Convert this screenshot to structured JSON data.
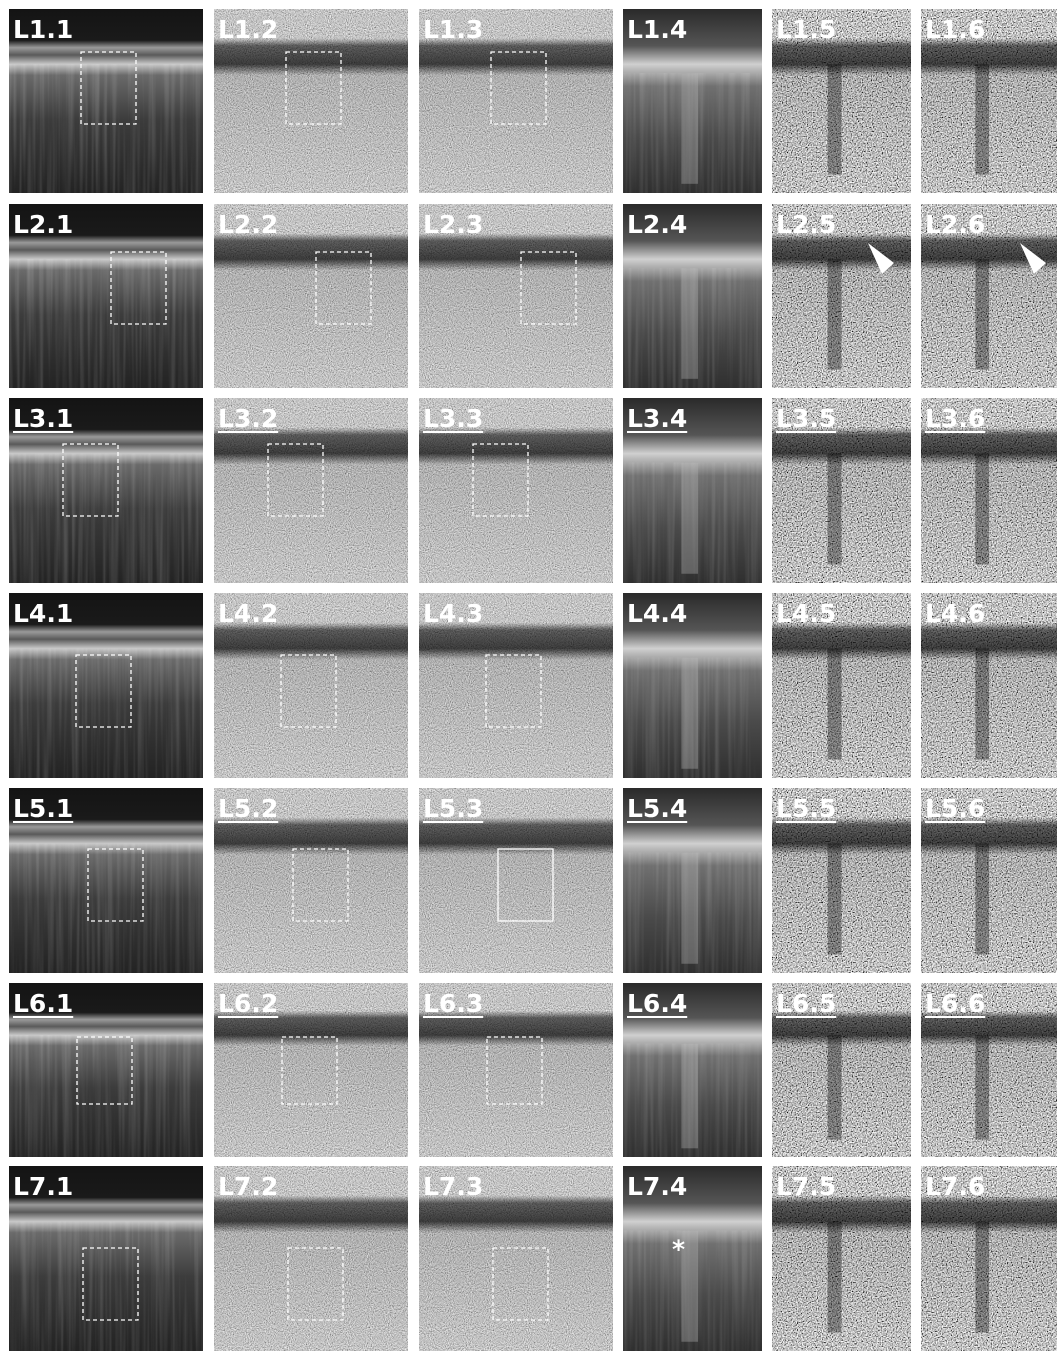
{
  "rows": [
    {
      "underlined": false,
      "labels": [
        "L1.1",
        "L1.2",
        "L1.3",
        "L1.4",
        "L1.5",
        "L1.6"
      ]
    },
    {
      "underlined": false,
      "labels": [
        "L2.1",
        "L2.2",
        "L2.3",
        "L2.4",
        "L2.5",
        "L2.6"
      ]
    },
    {
      "underlined": true,
      "labels": [
        "L3.1",
        "L3.2",
        "L3.3",
        "L3.4",
        "L3.5",
        "L3.6"
      ]
    },
    {
      "underlined": false,
      "labels": [
        "L4.1",
        "L4.2",
        "L4.3",
        "L4.4",
        "L4.5",
        "L4.6"
      ]
    },
    {
      "underlined": true,
      "labels": [
        "L5.1",
        "L5.2",
        "L5.3",
        "L5.4",
        "L5.5",
        "L5.6"
      ]
    },
    {
      "underlined": true,
      "labels": [
        "L6.1",
        "L6.2",
        "L6.3",
        "L6.4",
        "L6.5",
        "L6.6"
      ]
    },
    {
      "underlined": false,
      "labels": [
        "L7.1",
        "L7.2",
        "L7.3",
        "L7.4",
        "L7.5",
        "L7.6"
      ]
    }
  ],
  "annotations": [
    {
      "text": "*"
    }
  ]
}
